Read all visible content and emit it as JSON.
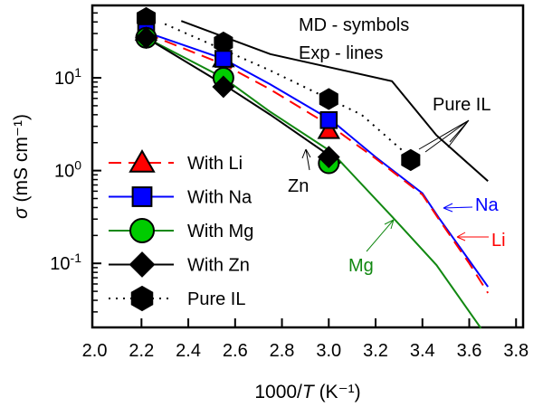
{
  "chart_data": {
    "type": "line",
    "xlabel_prefix": "1000/",
    "xlabel_var": "T",
    "xlabel_unit": " (K⁻¹)",
    "ylabel_var": "σ",
    "ylabel_unit": " (mS cm⁻¹)",
    "xlim": [
      1.99,
      3.83
    ],
    "ylim_log10": [
      -1.69,
      1.78
    ],
    "yscale": "log",
    "xticks": [
      "2.0",
      "2.2",
      "2.4",
      "2.6",
      "2.8",
      "3.0",
      "3.2",
      "3.4",
      "3.6",
      "3.8"
    ],
    "yticks": [
      {
        "base": "10",
        "exp": "1",
        "value": 1
      },
      {
        "base": "10",
        "exp": "0",
        "value": 0
      },
      {
        "base": "10",
        "exp": "-1",
        "value": -1
      }
    ],
    "annotations": {
      "md": "MD - symbols",
      "exp": "Exp - lines",
      "pure_il": "Pure IL",
      "na": "Na",
      "li": "Li",
      "mg": "Mg",
      "zn": "Zn"
    },
    "md_series": [
      {
        "name": "With Li",
        "color": "#ff0000",
        "marker": "triangle",
        "line": "dash",
        "x": [
          2.22,
          2.55,
          3.0
        ],
        "y": [
          31,
          16,
          2.7
        ]
      },
      {
        "name": "With Na",
        "color": "#0000ff",
        "marker": "square",
        "line": "solid",
        "x": [
          2.22,
          2.55,
          3.0
        ],
        "y": [
          31,
          16,
          3.5
        ]
      },
      {
        "name": "With Mg",
        "color": "#00cc00",
        "marker": "circle",
        "line": "solid",
        "x": [
          2.22,
          2.55,
          3.0
        ],
        "y": [
          27,
          10,
          1.2
        ]
      },
      {
        "name": "With Zn",
        "color": "#000000",
        "marker": "diamond",
        "line": "solid",
        "x": [
          2.22,
          2.55,
          3.0
        ],
        "y": [
          27,
          8,
          1.4
        ]
      },
      {
        "name": "Pure IL",
        "color": "#000000",
        "marker": "hexagon",
        "line": "dot",
        "x": [
          2.22,
          2.55,
          3.0,
          3.35
        ],
        "y": [
          44,
          24,
          5.9,
          1.3
        ]
      }
    ],
    "exp_series": [
      {
        "name": "Pure IL exp",
        "color": "#000000",
        "dash": "",
        "x": [
          2.37,
          2.75,
          3.27,
          3.46,
          3.68
        ],
        "y": [
          41,
          18,
          9.2,
          2.4,
          0.77
        ]
      },
      {
        "name": "Pure IL exp (dotted)",
        "color": "#000000",
        "dash": "2,6",
        "x": [
          2.3,
          2.75,
          3.14,
          3.32
        ],
        "y": [
          38,
          12,
          4,
          1.6
        ]
      },
      {
        "name": "Na exp",
        "color": "#0000ff",
        "dash": "",
        "x": [
          2.22,
          2.55,
          2.75,
          3.01,
          3.2,
          3.4,
          3.47,
          3.68
        ],
        "y": [
          31,
          16,
          8.5,
          3.5,
          1.4,
          0.57,
          0.31,
          0.056
        ]
      },
      {
        "name": "Li exp",
        "color": "#ff0000",
        "dash": "14,8",
        "x": [
          2.22,
          2.55,
          2.75,
          3.01,
          3.2,
          3.4,
          3.47,
          3.6,
          3.68
        ],
        "y": [
          30,
          14,
          7.5,
          3.0,
          1.35,
          0.55,
          0.3,
          0.1,
          0.048
        ]
      },
      {
        "name": "Mg exp",
        "color": "#118811",
        "dash": "",
        "x": [
          2.22,
          2.55,
          2.75,
          3.01,
          3.27,
          3.46,
          3.65
        ],
        "y": [
          27,
          10,
          4.3,
          1.6,
          0.32,
          0.096,
          0.02
        ]
      },
      {
        "name": "Zn exp",
        "color": "#000000",
        "dash": "",
        "x": [
          2.22,
          2.55,
          2.75,
          3.05
        ],
        "y": [
          27,
          8.5,
          4,
          1.2
        ]
      }
    ]
  }
}
